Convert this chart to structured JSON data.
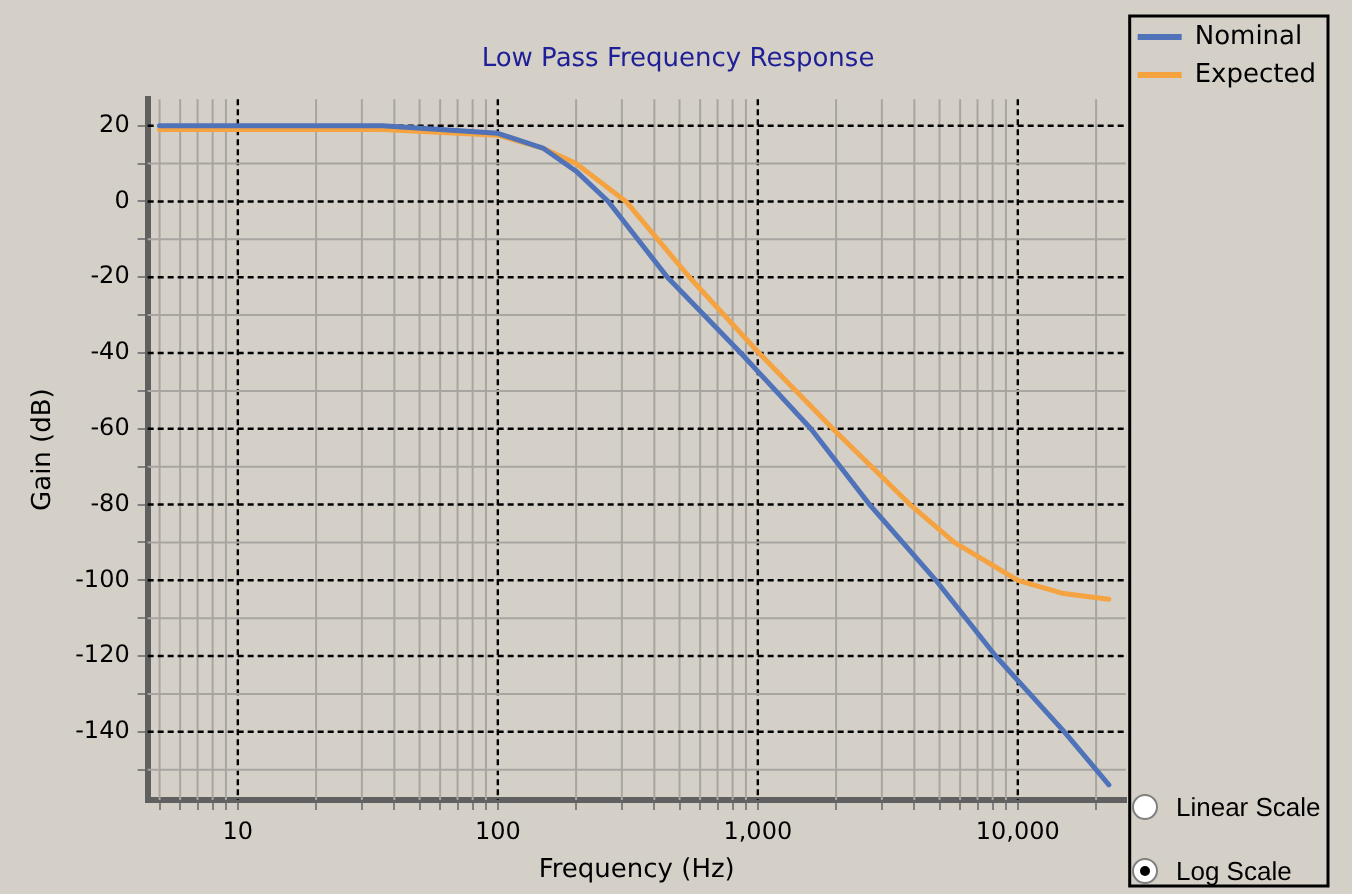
{
  "chart_data": {
    "type": "line",
    "title": "Low Pass Frequency Response",
    "xlabel": "Frequency (Hz)",
    "ylabel": "Gain (dB)",
    "series": [
      {
        "name": "Nominal",
        "color": "#4f72b8",
        "x": [
          5,
          36,
          100,
          150,
          200,
          266,
          449,
          860,
          1600,
          2690,
          4840,
          8220,
          15100,
          22400
        ],
        "values": [
          20,
          20,
          18,
          14,
          8,
          0,
          -20,
          -40,
          -60,
          -80,
          -100,
          -120,
          -140,
          -154
        ]
      },
      {
        "name": "Expected",
        "color": "#f5a340",
        "x": [
          5,
          36,
          100,
          150,
          200,
          311,
          546,
          1010,
          1944,
          3850,
          5700,
          10000,
          15000,
          22400
        ],
        "values": [
          19,
          19,
          17.5,
          14,
          10,
          0,
          -20,
          -40,
          -60,
          -80,
          -90,
          -100,
          -103.5,
          -105
        ]
      }
    ],
    "log": "x",
    "xlim": [
      4.5,
      26000
    ],
    "xticks": [
      {
        "value": 5,
        "label": null
      },
      {
        "value": 6,
        "label": null
      },
      {
        "value": 7,
        "label": null
      },
      {
        "value": 8,
        "label": null
      },
      {
        "value": 9,
        "label": null
      },
      10,
      {
        "value": 20,
        "label": null
      },
      {
        "value": 30,
        "label": null
      },
      {
        "value": 40,
        "label": null
      },
      {
        "value": 50,
        "label": null
      },
      {
        "value": 60,
        "label": null
      },
      {
        "value": 70,
        "label": null
      },
      {
        "value": 80,
        "label": null
      },
      {
        "value": 90,
        "label": null
      },
      100,
      {
        "value": 200,
        "label": null
      },
      {
        "value": 300,
        "label": null
      },
      {
        "value": 400,
        "label": null
      },
      {
        "value": 500,
        "label": null
      },
      {
        "value": 600,
        "label": null
      },
      {
        "value": 700,
        "label": null
      },
      {
        "value": 800,
        "label": null
      },
      {
        "value": 900,
        "label": null
      },
      {
        "value": 1000,
        "label": "1,000"
      },
      {
        "value": 2000,
        "label": null
      },
      {
        "value": 3000,
        "label": null
      },
      {
        "value": 4000,
        "label": null
      },
      {
        "value": 5000,
        "label": null
      },
      {
        "value": 6000,
        "label": null
      },
      {
        "value": 7000,
        "label": null
      },
      {
        "value": 8000,
        "label": null
      },
      {
        "value": 9000,
        "label": null
      },
      {
        "value": 10000,
        "label": "10,000"
      },
      {
        "value": 20000,
        "label": null
      }
    ],
    "ylim": [
      -158,
      27
    ],
    "yticks": [
      {
        "value": -150,
        "label": null
      },
      -140,
      {
        "value": -130,
        "label": null
      },
      -120,
      {
        "value": -110,
        "label": null
      },
      -100,
      {
        "value": -90,
        "label": null
      },
      -80,
      {
        "value": -70,
        "label": null
      },
      -60,
      {
        "value": -50,
        "label": null
      },
      -40,
      {
        "value": -30,
        "label": null
      },
      -20,
      {
        "value": -10,
        "label": null
      },
      0,
      {
        "value": 10,
        "label": null
      },
      20
    ],
    "grid": true,
    "legend": "top right",
    "marker": "none",
    "line_style": "solid",
    "annotations": [
      "Linear Scale",
      "Log Scale"
    ]
  }
}
